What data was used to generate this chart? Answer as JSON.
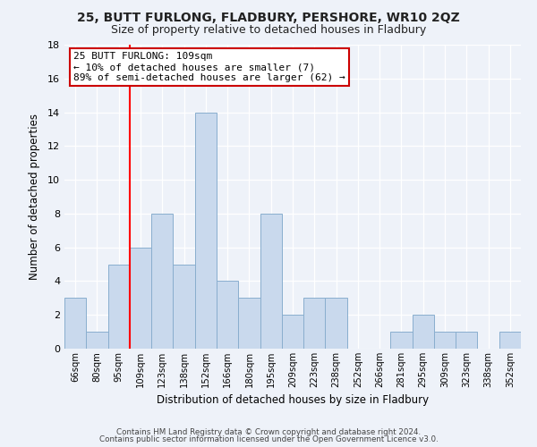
{
  "title1": "25, BUTT FURLONG, FLADBURY, PERSHORE, WR10 2QZ",
  "title2": "Size of property relative to detached houses in Fladbury",
  "xlabel": "Distribution of detached houses by size in Fladbury",
  "ylabel": "Number of detached properties",
  "footer1": "Contains HM Land Registry data © Crown copyright and database right 2024.",
  "footer2": "Contains public sector information licensed under the Open Government Licence v3.0.",
  "bins": [
    "66sqm",
    "80sqm",
    "95sqm",
    "109sqm",
    "123sqm",
    "138sqm",
    "152sqm",
    "166sqm",
    "180sqm",
    "195sqm",
    "209sqm",
    "223sqm",
    "238sqm",
    "252sqm",
    "266sqm",
    "281sqm",
    "295sqm",
    "309sqm",
    "323sqm",
    "338sqm",
    "352sqm"
  ],
  "values": [
    3,
    1,
    5,
    6,
    8,
    5,
    14,
    4,
    3,
    8,
    2,
    3,
    3,
    0,
    0,
    1,
    2,
    1,
    1,
    0,
    1
  ],
  "bar_color": "#c9d9ed",
  "bar_edge_color": "#89aece",
  "red_line_bin_index": 3,
  "ylim": [
    0,
    18
  ],
  "yticks": [
    0,
    2,
    4,
    6,
    8,
    10,
    12,
    14,
    16,
    18
  ],
  "annotation_title": "25 BUTT FURLONG: 109sqm",
  "annotation_line1": "← 10% of detached houses are smaller (7)",
  "annotation_line2": "89% of semi-detached houses are larger (62) →",
  "annotation_box_color": "#ffffff",
  "annotation_box_edge": "#cc0000",
  "bg_color": "#eef2f9"
}
